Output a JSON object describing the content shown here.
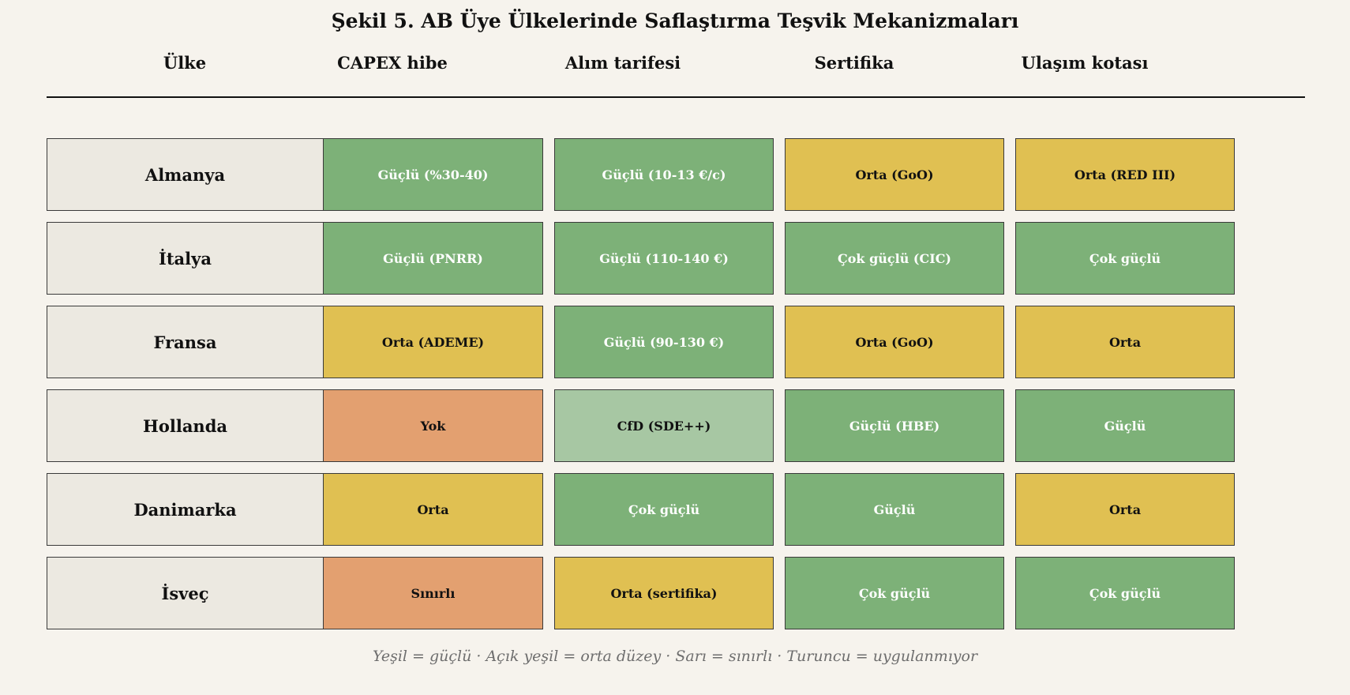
{
  "chart_data": {
    "type": "table",
    "title": "Şekil 5. AB Üye Ülkelerinde Saflaştırma Teşvik Mekanizmaları",
    "columns": [
      "Ülke",
      "CAPEX hibe",
      "Alım tarifesi",
      "Sertifika",
      "Ulaşım kotası"
    ],
    "rows": [
      {
        "country": "Almanya",
        "cells": [
          {
            "text": "Güçlü (%30-40)",
            "level": "strong"
          },
          {
            "text": "Güçlü (10-13 €/c)",
            "level": "strong"
          },
          {
            "text": "Orta (GoO)",
            "level": "mid"
          },
          {
            "text": "Orta (RED III)",
            "level": "mid"
          }
        ]
      },
      {
        "country": "İtalya",
        "cells": [
          {
            "text": "Güçlü (PNRR)",
            "level": "strong"
          },
          {
            "text": "Güçlü (110-140 €)",
            "level": "strong"
          },
          {
            "text": "Çok güçlü (CIC)",
            "level": "strong"
          },
          {
            "text": "Çok güçlü",
            "level": "strong"
          }
        ]
      },
      {
        "country": "Fransa",
        "cells": [
          {
            "text": "Orta (ADEME)",
            "level": "mid"
          },
          {
            "text": "Güçlü (90-130 €)",
            "level": "strong"
          },
          {
            "text": "Orta (GoO)",
            "level": "mid"
          },
          {
            "text": "Orta",
            "level": "mid"
          }
        ]
      },
      {
        "country": "Hollanda",
        "cells": [
          {
            "text": "Yok",
            "level": "none"
          },
          {
            "text": "CfD (SDE++)",
            "level": "cfd"
          },
          {
            "text": "Güçlü (HBE)",
            "level": "strong"
          },
          {
            "text": "Güçlü",
            "level": "strong"
          }
        ]
      },
      {
        "country": "Danimarka",
        "cells": [
          {
            "text": "Orta",
            "level": "mid"
          },
          {
            "text": "Çok güçlü",
            "level": "strong"
          },
          {
            "text": "Güçlü",
            "level": "strong"
          },
          {
            "text": "Orta",
            "level": "mid"
          }
        ]
      },
      {
        "country": "İsveç",
        "cells": [
          {
            "text": "Sınırlı",
            "level": "none"
          },
          {
            "text": "Orta (sertifika)",
            "level": "mid"
          },
          {
            "text": "Çok güçlü",
            "level": "strong"
          },
          {
            "text": "Çok güçlü",
            "level": "strong"
          }
        ]
      }
    ],
    "legend": "Yeşil = güçlü · Açık yeşil = orta düzey · Sarı = sınırlı · Turuncu = uygulanmıyor",
    "colors": {
      "strong": "#7db178",
      "cfd": "#a7c7a3",
      "mid": "#e0c052",
      "none": "#e3a070",
      "country_bg": "#ece9e1",
      "background": "#f6f3ed"
    }
  }
}
